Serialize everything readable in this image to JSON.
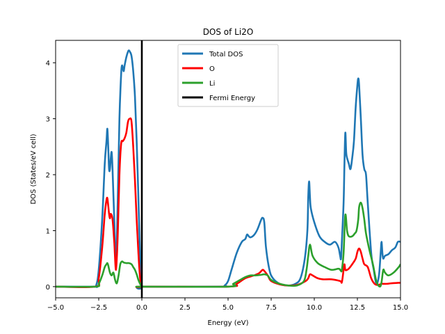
{
  "chart_data": {
    "type": "line",
    "title": "DOS of Li2O",
    "xlabel": "Energy (eV)",
    "ylabel": "DOS (States/eV cell)",
    "xlim": [
      -5,
      15
    ],
    "ylim": [
      -0.2,
      4.4
    ],
    "xticks": [
      -5.0,
      -2.5,
      0.0,
      2.5,
      5.0,
      7.5,
      10.0,
      12.5,
      15.0
    ],
    "xtick_labels": [
      "−5.0",
      "−2.5",
      "0.0",
      "2.5",
      "5.0",
      "7.5",
      "10.0",
      "12.5",
      "15.0"
    ],
    "yticks": [
      0,
      1,
      2,
      3,
      4
    ],
    "ytick_labels": [
      "0",
      "1",
      "2",
      "3",
      "4"
    ],
    "grid": false,
    "legend_position": "top-center",
    "vline": {
      "x": 0.0,
      "name": "Fermi Energy",
      "color": "#000000"
    },
    "series": [
      {
        "name": "Total DOS",
        "color": "#1f77b4",
        "x": [
          -5.0,
          -2.8,
          -2.65,
          -2.5,
          -2.3,
          -2.15,
          -2.05,
          -2.0,
          -1.95,
          -1.9,
          -1.85,
          -1.8,
          -1.75,
          -1.7,
          -1.6,
          -1.5,
          -1.4,
          -1.3,
          -1.2,
          -1.15,
          -1.1,
          -1.05,
          -1.0,
          -0.9,
          -0.8,
          -0.75,
          -0.7,
          -0.6,
          -0.5,
          -0.4,
          -0.3,
          -0.2,
          -0.1,
          0.0,
          0.05,
          4.5,
          4.8,
          5.0,
          5.2,
          5.5,
          5.8,
          6.0,
          6.1,
          6.2,
          6.3,
          6.5,
          6.7,
          6.9,
          7.0,
          7.1,
          7.2,
          7.4,
          7.6,
          8.0,
          8.5,
          8.9,
          9.2,
          9.45,
          9.6,
          9.65,
          9.7,
          9.75,
          9.8,
          10.0,
          10.3,
          10.6,
          10.9,
          11.2,
          11.4,
          11.5,
          11.55,
          11.6,
          11.7,
          11.75,
          11.8,
          11.85,
          11.9,
          12.0,
          12.1,
          12.2,
          12.3,
          12.4,
          12.5,
          12.55,
          12.6,
          12.7,
          12.8,
          12.9,
          13.0,
          13.1,
          13.3,
          13.45,
          13.6,
          13.75,
          13.85,
          13.9,
          13.95,
          14.0,
          14.1,
          14.3,
          14.5,
          14.7,
          14.85,
          15.0
        ],
        "y": [
          0,
          0,
          0.02,
          0.3,
          1.2,
          2.2,
          2.6,
          2.82,
          2.5,
          2.1,
          2.1,
          2.3,
          2.4,
          2.1,
          1.2,
          0.45,
          1.5,
          3.0,
          3.8,
          3.95,
          3.9,
          3.85,
          3.95,
          4.1,
          4.2,
          4.22,
          4.2,
          4.12,
          3.85,
          3.4,
          2.6,
          1.6,
          0.5,
          0.0,
          0,
          0,
          0.02,
          0.1,
          0.3,
          0.6,
          0.8,
          0.85,
          0.93,
          0.9,
          0.88,
          0.92,
          1.02,
          1.18,
          1.23,
          1.15,
          0.7,
          0.3,
          0.15,
          0.05,
          0.02,
          0.05,
          0.15,
          0.5,
          1.0,
          1.6,
          1.88,
          1.6,
          1.4,
          1.15,
          0.9,
          0.8,
          0.75,
          0.8,
          0.7,
          0.55,
          0.5,
          0.8,
          1.5,
          2.2,
          2.75,
          2.4,
          2.3,
          2.2,
          2.1,
          2.3,
          2.6,
          3.2,
          3.6,
          3.72,
          3.6,
          3.0,
          2.35,
          2.1,
          2.0,
          1.5,
          0.6,
          0.3,
          0.05,
          0.2,
          0.6,
          0.8,
          0.6,
          0.5,
          0.55,
          0.58,
          0.65,
          0.7,
          0.8,
          0.8
        ]
      },
      {
        "name": "O",
        "color": "#ff0000",
        "x": [
          -5.0,
          -2.7,
          -2.5,
          -2.3,
          -2.15,
          -2.05,
          -2.0,
          -1.95,
          -1.9,
          -1.85,
          -1.8,
          -1.7,
          -1.6,
          -1.5,
          -1.4,
          -1.3,
          -1.2,
          -1.1,
          -1.0,
          -0.9,
          -0.8,
          -0.7,
          -0.6,
          -0.5,
          -0.4,
          -0.3,
          -0.2,
          -0.1,
          0.0,
          0.05,
          5.0,
          5.5,
          6.0,
          6.5,
          6.8,
          7.0,
          7.1,
          7.3,
          7.5,
          8.0,
          8.5,
          9.0,
          9.5,
          9.65,
          9.75,
          9.9,
          10.2,
          10.5,
          11.0,
          11.5,
          11.6,
          11.7,
          11.75,
          11.8,
          11.9,
          12.0,
          12.2,
          12.4,
          12.5,
          12.6,
          12.7,
          12.8,
          12.9,
          13.1,
          13.3,
          13.5,
          13.7,
          13.9,
          14.0,
          14.2,
          14.5,
          15.0
        ],
        "y": [
          0,
          0,
          0.15,
          0.7,
          1.3,
          1.55,
          1.58,
          1.45,
          1.3,
          1.22,
          1.3,
          1.2,
          0.8,
          0.3,
          0.9,
          2.0,
          2.55,
          2.6,
          2.65,
          2.75,
          2.95,
          3.0,
          2.95,
          2.5,
          1.9,
          1.2,
          0.6,
          0.15,
          0.0,
          0,
          0,
          0.05,
          0.15,
          0.2,
          0.24,
          0.3,
          0.28,
          0.2,
          0.1,
          0.04,
          0.02,
          0.03,
          0.1,
          0.15,
          0.22,
          0.2,
          0.15,
          0.13,
          0.13,
          0.1,
          0.08,
          0.3,
          0.4,
          0.3,
          0.3,
          0.32,
          0.4,
          0.5,
          0.62,
          0.68,
          0.62,
          0.5,
          0.4,
          0.35,
          0.15,
          0.05,
          0.03,
          0.05,
          0.05,
          0.05,
          0.06,
          0.07
        ]
      },
      {
        "name": "Li",
        "color": "#2ca02c",
        "x": [
          -5.0,
          -2.7,
          -2.5,
          -2.3,
          -2.15,
          -2.05,
          -2.0,
          -1.95,
          -1.85,
          -1.75,
          -1.65,
          -1.55,
          -1.45,
          -1.35,
          -1.25,
          -1.15,
          -1.05,
          -0.9,
          -0.75,
          -0.6,
          -0.5,
          -0.4,
          -0.3,
          -0.2,
          -0.1,
          0.0,
          0.05,
          5.0,
          5.3,
          5.7,
          6.0,
          6.3,
          6.6,
          6.9,
          7.1,
          7.3,
          7.5,
          8.0,
          8.5,
          9.0,
          9.4,
          9.55,
          9.65,
          9.75,
          9.9,
          10.2,
          10.6,
          11.0,
          11.4,
          11.5,
          11.55,
          11.6,
          11.7,
          11.8,
          11.9,
          12.0,
          12.2,
          12.35,
          12.45,
          12.55,
          12.6,
          12.7,
          12.8,
          12.9,
          13.0,
          13.2,
          13.4,
          13.6,
          13.8,
          13.9,
          14.0,
          14.1,
          14.3,
          14.6,
          14.9,
          15.0
        ],
        "y": [
          0,
          0,
          0.05,
          0.2,
          0.35,
          0.4,
          0.42,
          0.38,
          0.25,
          0.2,
          0.25,
          0.12,
          0.06,
          0.2,
          0.4,
          0.45,
          0.43,
          0.42,
          0.42,
          0.4,
          0.35,
          0.3,
          0.22,
          0.12,
          0.05,
          0.0,
          0,
          0,
          0.05,
          0.12,
          0.17,
          0.2,
          0.2,
          0.21,
          0.22,
          0.2,
          0.12,
          0.05,
          0.02,
          0.02,
          0.1,
          0.3,
          0.55,
          0.75,
          0.55,
          0.42,
          0.35,
          0.3,
          0.32,
          0.3,
          0.28,
          0.3,
          0.6,
          1.28,
          1.0,
          0.9,
          0.9,
          0.95,
          1.0,
          1.2,
          1.42,
          1.5,
          1.4,
          1.2,
          0.95,
          0.65,
          0.4,
          0.1,
          0.0,
          0.08,
          0.3,
          0.25,
          0.2,
          0.25,
          0.35,
          0.4
        ]
      },
      {
        "name": "Fermi Energy",
        "color": "#000000",
        "x": [
          0.0,
          0.0
        ],
        "y": [
          -0.2,
          4.4
        ]
      }
    ]
  }
}
